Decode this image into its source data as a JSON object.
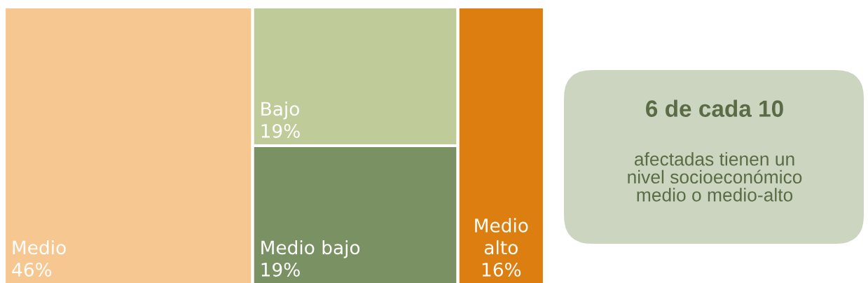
{
  "chart_data": {
    "type": "other",
    "categories": [
      "Medio",
      "Bajo",
      "Medio bajo",
      "Medio alto"
    ],
    "values": [
      46,
      19,
      19,
      16
    ],
    "value_labels": [
      "46%",
      "19%",
      "19%",
      "16%"
    ],
    "colors": [
      "#f7c791",
      "#bfcc99",
      "#7a9263",
      "#dd7e10"
    ],
    "annotations": [
      "6 de cada 10",
      "afectadas tienen un\nnivel socioeconómico\nmedio o medio-alto"
    ]
  }
}
